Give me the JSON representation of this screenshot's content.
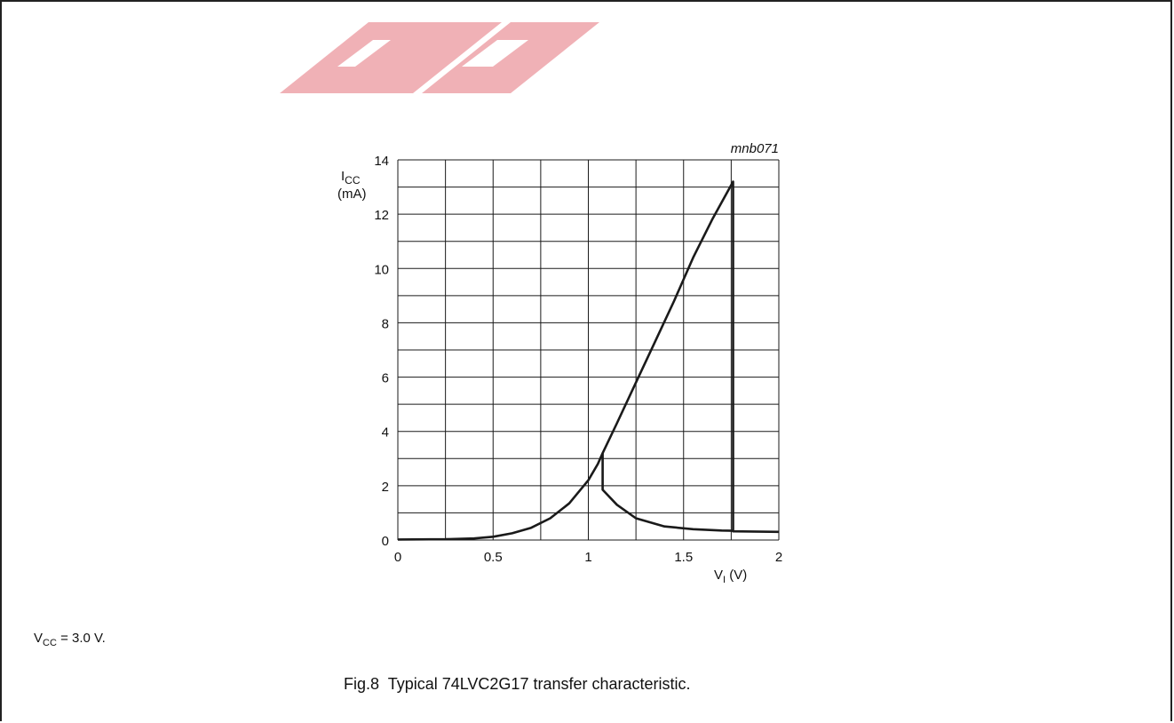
{
  "chart_data": {
    "type": "line",
    "figure_id": "mnb071",
    "ylabel": {
      "main": "I",
      "sub": "CC",
      "unit": "(mA)"
    },
    "xlabel": {
      "main": "V",
      "sub": "I",
      "unit": " (V)"
    },
    "xlim": [
      0,
      2
    ],
    "ylim": [
      0,
      14
    ],
    "xticks": [
      0,
      0.5,
      1,
      1.5,
      2
    ],
    "xtick_labels": [
      "0",
      "0.5",
      "1",
      "1.5",
      "2"
    ],
    "yticks": [
      0,
      2,
      4,
      6,
      8,
      10,
      12,
      14
    ],
    "ytick_labels": [
      "0",
      "2",
      "4",
      "6",
      "8",
      "10",
      "12",
      "14"
    ],
    "grid": true,
    "series": [
      {
        "values": [
          [
            0,
            0.02
          ],
          [
            0.25,
            0.03
          ],
          [
            0.4,
            0.06
          ],
          [
            0.5,
            0.12
          ],
          [
            0.6,
            0.25
          ],
          [
            0.7,
            0.45
          ],
          [
            0.8,
            0.8
          ],
          [
            0.9,
            1.35
          ],
          [
            1.0,
            2.2
          ],
          [
            1.05,
            2.8
          ],
          [
            1.075,
            3.2
          ],
          [
            1.15,
            4.3
          ],
          [
            1.25,
            5.8
          ],
          [
            1.35,
            7.3
          ],
          [
            1.45,
            8.8
          ],
          [
            1.55,
            10.4
          ],
          [
            1.65,
            11.8
          ],
          [
            1.76,
            13.2
          ],
          [
            1.76,
            0.32
          ],
          [
            2.0,
            0.3
          ]
        ]
      },
      {
        "values": [
          [
            1.075,
            3.2
          ],
          [
            1.075,
            1.85
          ],
          [
            1.15,
            1.3
          ],
          [
            1.25,
            0.8
          ],
          [
            1.4,
            0.5
          ],
          [
            1.55,
            0.4
          ],
          [
            1.7,
            0.35
          ],
          [
            1.76,
            0.34
          ]
        ]
      }
    ]
  },
  "footnote": {
    "main": "V",
    "sub": "CC",
    "rest": " = 3.0 V."
  },
  "caption": "Fig.8  Typical 74LVC2G17 transfer characteristic.",
  "colors": {
    "line": "#1a1a1a",
    "grid": "#1a1a1a",
    "watermark": "#e05560"
  }
}
